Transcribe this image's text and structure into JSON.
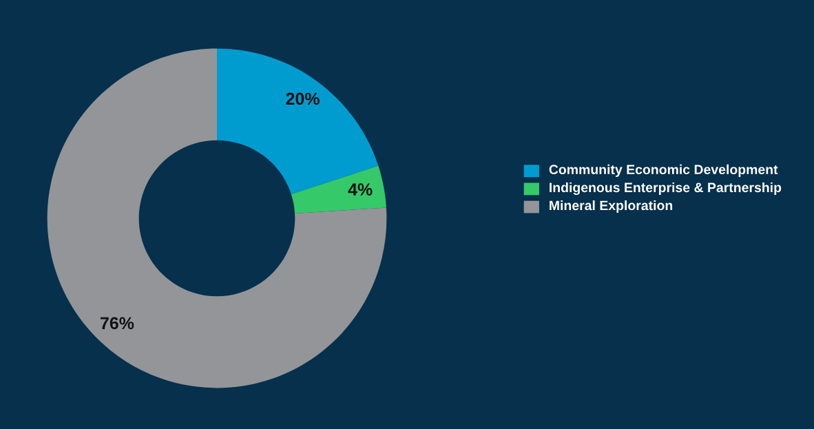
{
  "chart_data": {
    "type": "donut",
    "categories": [
      "Community Economic Development",
      "Indigenous Enterprise & Partnership",
      "Mineral Exploration"
    ],
    "values": [
      20,
      4,
      76
    ],
    "colors": [
      "#009ccf",
      "#35c96a",
      "#939598"
    ],
    "value_labels": [
      "20%",
      "4%",
      "76%"
    ],
    "legend": "right"
  }
}
